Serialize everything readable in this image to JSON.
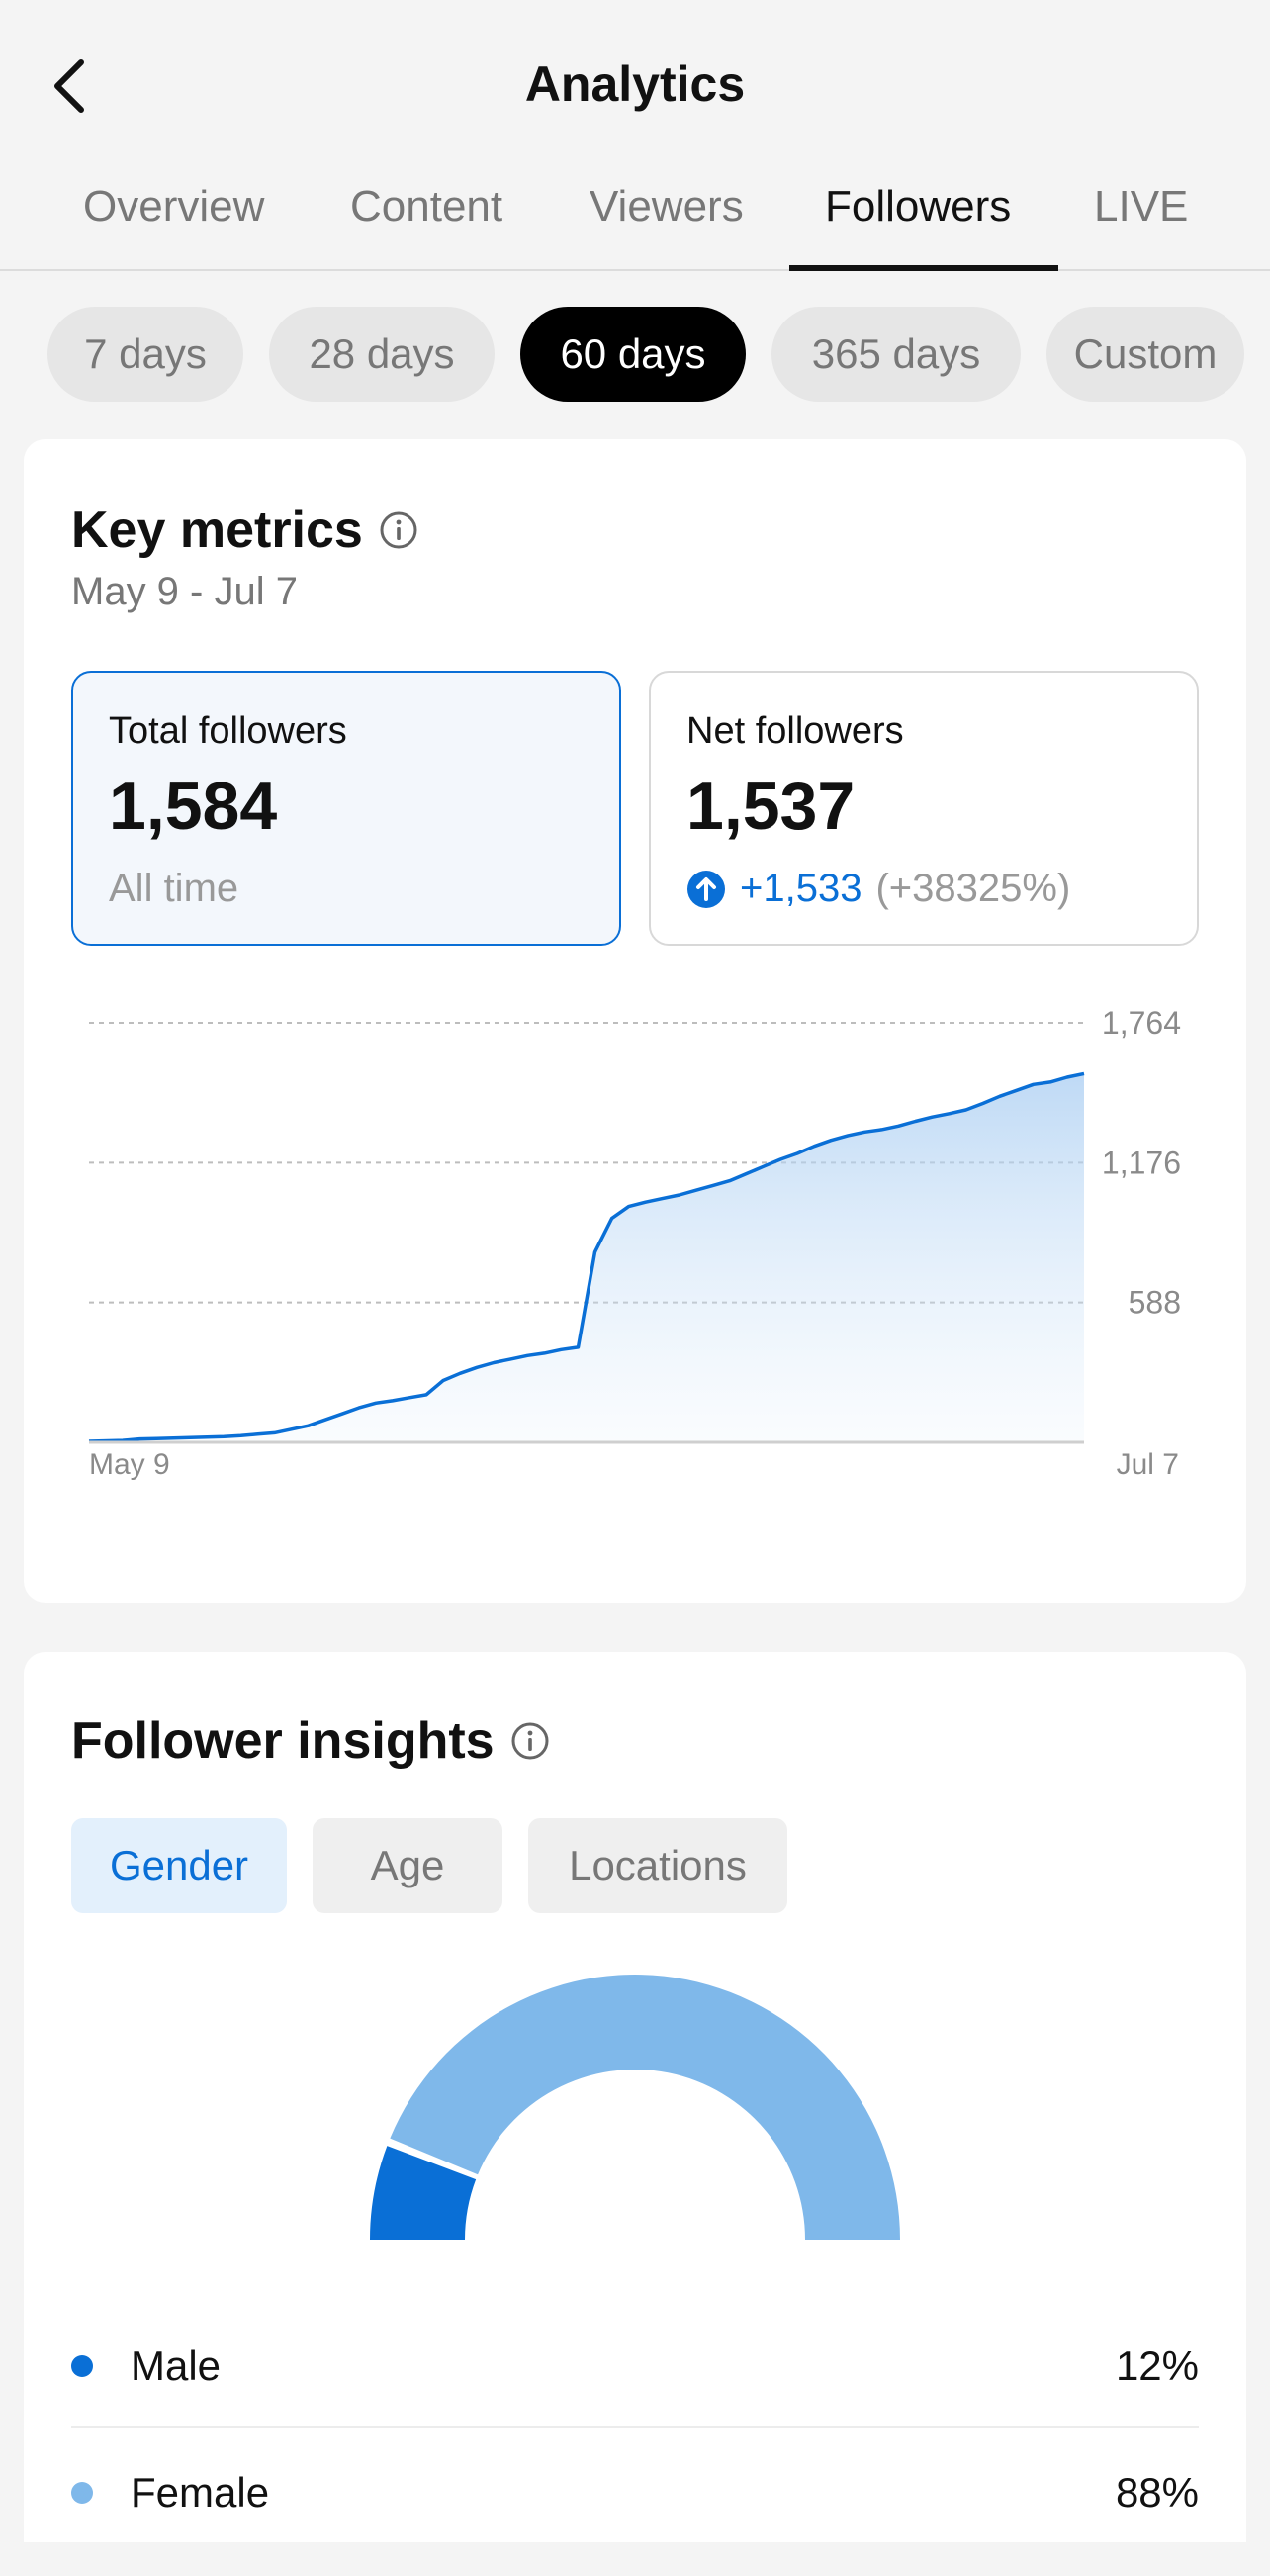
{
  "header": {
    "title": "Analytics"
  },
  "tabs": [
    {
      "label": "Overview"
    },
    {
      "label": "Content"
    },
    {
      "label": "Viewers"
    },
    {
      "label": "Followers",
      "active": true
    },
    {
      "label": "LIVE"
    }
  ],
  "ranges": [
    {
      "label": "7 days"
    },
    {
      "label": "28 days"
    },
    {
      "label": "60 days",
      "active": true
    },
    {
      "label": "365 days"
    },
    {
      "label": "Custom"
    }
  ],
  "key_metrics": {
    "title": "Key metrics",
    "date_range": "May 9 - Jul 7",
    "total": {
      "label": "Total followers",
      "value": "1,584",
      "sub": "All time"
    },
    "net": {
      "label": "Net followers",
      "value": "1,537",
      "delta": "+1,533",
      "delta_pct": "(+38325%)"
    }
  },
  "chart_data": {
    "type": "area",
    "title": "Total followers",
    "x_start_label": "May 9",
    "x_end_label": "Jul 7",
    "y_ticks": [
      "1,764",
      "1,176",
      "588"
    ],
    "ylim": [
      0,
      1764
    ],
    "x": [
      0,
      2,
      3,
      4,
      5,
      6,
      7,
      8,
      9,
      10,
      11,
      12,
      13,
      14,
      15,
      16,
      17,
      18,
      19,
      20,
      21,
      22,
      23,
      24,
      25,
      26,
      27,
      28,
      29,
      30,
      31,
      32,
      33,
      34,
      35,
      36,
      37,
      38,
      39,
      40,
      41,
      42,
      43,
      44,
      45,
      46,
      47,
      48,
      49,
      50,
      51,
      52,
      53,
      54,
      55,
      56,
      57,
      58,
      59
    ],
    "values": [
      4,
      8,
      14,
      16,
      18,
      20,
      22,
      24,
      28,
      34,
      40,
      55,
      70,
      95,
      120,
      145,
      165,
      175,
      188,
      200,
      260,
      290,
      315,
      335,
      350,
      365,
      375,
      390,
      400,
      800,
      942,
      992,
      1010,
      1025,
      1040,
      1060,
      1080,
      1100,
      1130,
      1160,
      1190,
      1215,
      1245,
      1270,
      1290,
      1305,
      1315,
      1330,
      1350,
      1368,
      1382,
      1398,
      1425,
      1455,
      1480,
      1505,
      1515,
      1535,
      1550
    ]
  },
  "insights": {
    "title": "Follower insights",
    "tabs": [
      {
        "label": "Gender",
        "active": true
      },
      {
        "label": "Age"
      },
      {
        "label": "Locations"
      }
    ],
    "gender": [
      {
        "label": "Male",
        "value": "12%",
        "fraction": 0.12,
        "color": "#0a6fd6"
      },
      {
        "label": "Female",
        "value": "88%",
        "fraction": 0.88,
        "color": "#7fb8ea"
      }
    ]
  },
  "colors": {
    "accent": "#0a6fd6",
    "light_blue": "#7fb8ea"
  }
}
